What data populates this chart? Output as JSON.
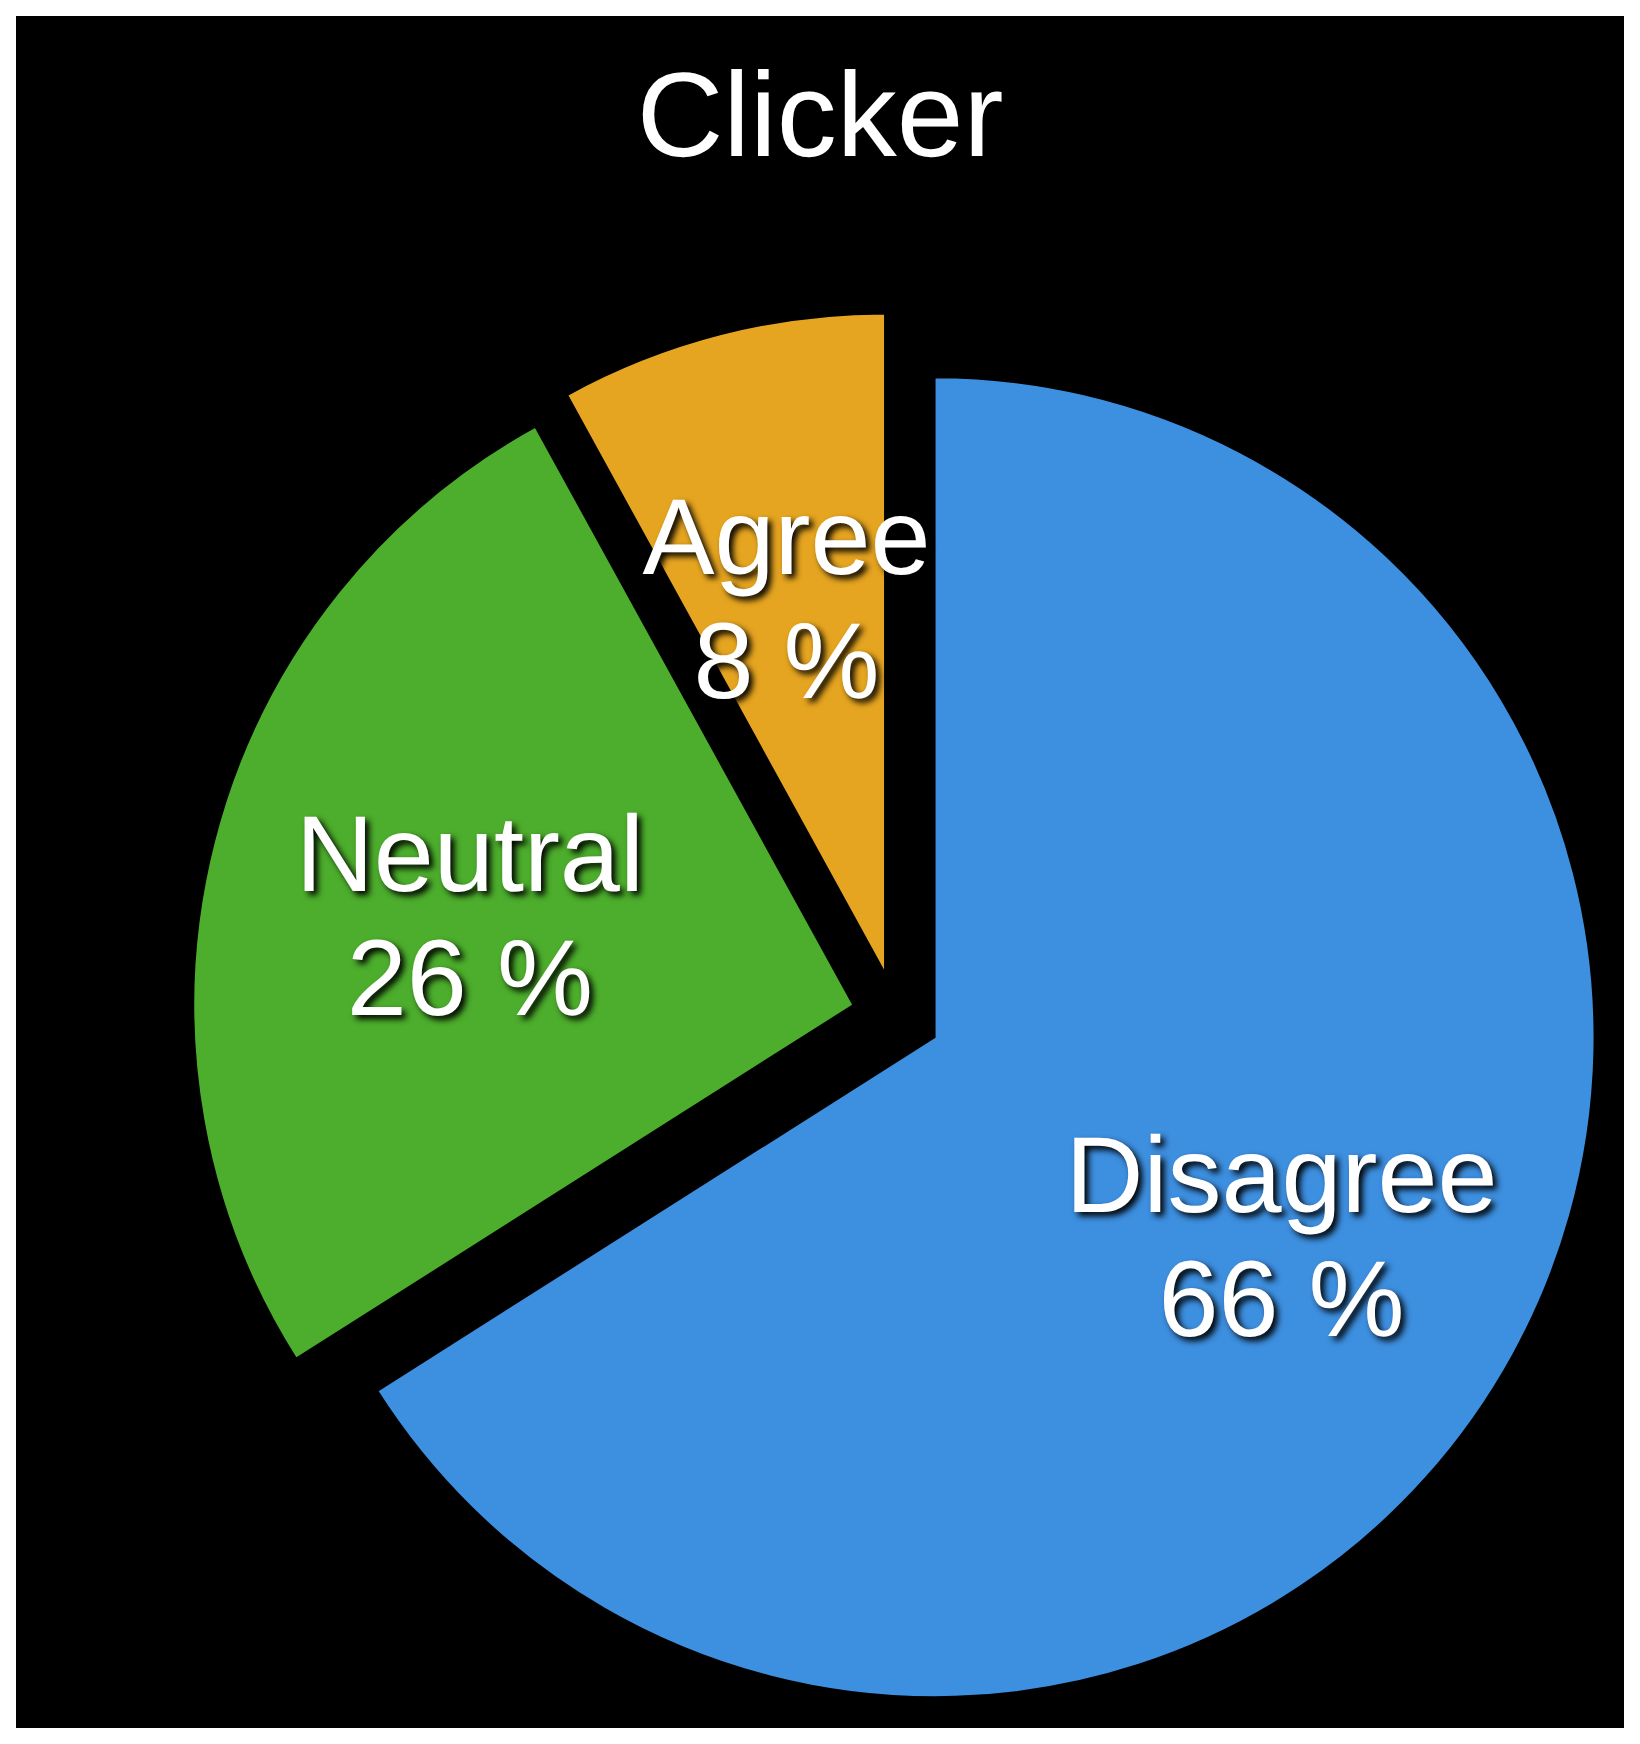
{
  "chart_data": {
    "type": "pie",
    "title": "Clicker",
    "categories": [
      "Disagree",
      "Neutral",
      "Agree"
    ],
    "values": [
      66,
      26,
      8
    ],
    "colors": [
      "#3d8fe0",
      "#4cae2c",
      "#e6a520"
    ],
    "value_labels": [
      "66 %",
      "26 %",
      "8 %"
    ]
  }
}
